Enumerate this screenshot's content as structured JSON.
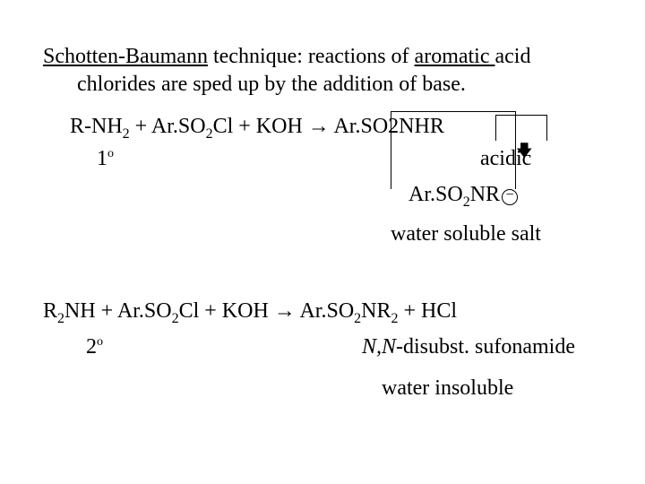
{
  "intro": {
    "line1a": "Schotten-Baumann",
    "line1b": " technique: reactions of ",
    "line1c": "aromatic ",
    "line1d": "acid",
    "line2": "chlorides are sped up by the addition of base."
  },
  "eq1": {
    "r": "R-NH",
    "r_sub": "2",
    "plus1": "  +  Ar.SO",
    "so2": "2",
    "cl": "Cl  +  KOH   ",
    "arrow": "→",
    "sp": "   ",
    "prod1": "Ar.SO2NHR"
  },
  "labels": {
    "primary": "1",
    "primary_sup": "o",
    "acidic": "acidic",
    "anion_a": "Ar.SO",
    "anion_sub": "2",
    "anion_b": "NR",
    "minus": "−",
    "salt": "water soluble salt"
  },
  "eq2": {
    "r2": "R",
    "r2sub": "2",
    "nh": "NH  +  Ar.SO",
    "so2": "2",
    "cl": "Cl  +  KOH   ",
    "arrow": "→",
    "sp": "   Ar.SO",
    "p2": "2",
    "nr": "NR",
    "nr2": "2",
    "hcl": "  +  HCl"
  },
  "labels2": {
    "secondary": "2",
    "secondary_sup": "o",
    "nn": "N,N",
    "disubst": "-disubst. sufonamide",
    "insoluble": "water insoluble"
  }
}
